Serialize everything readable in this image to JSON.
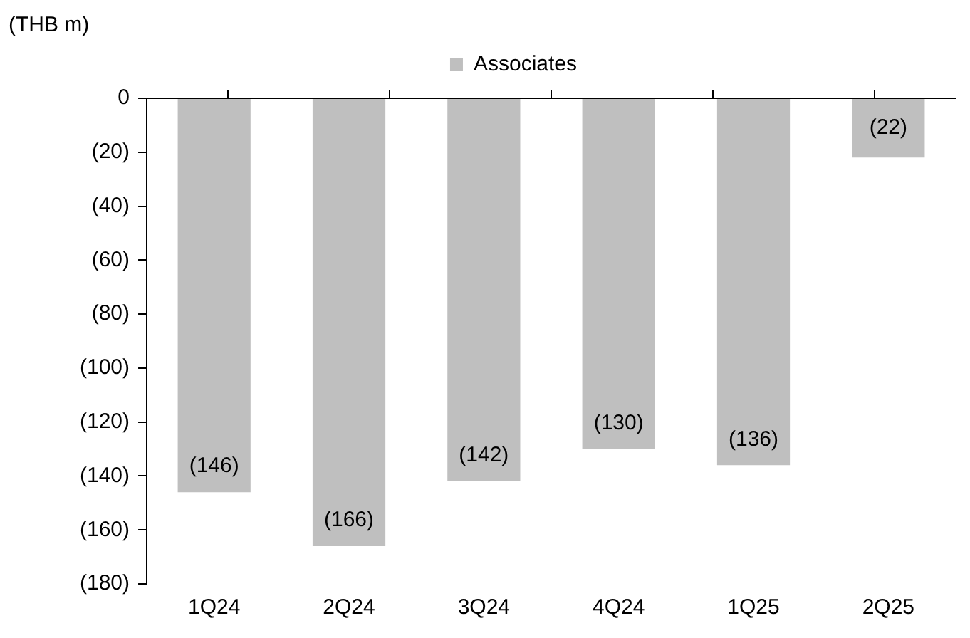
{
  "chart_data": {
    "type": "bar",
    "ylabel": "(THB m)",
    "categories": [
      "1Q24",
      "2Q24",
      "3Q24",
      "4Q24",
      "1Q25",
      "2Q25"
    ],
    "series": [
      {
        "name": "Associates",
        "color": "#bfbfbf",
        "values": [
          -146,
          -166,
          -142,
          -130,
          -136,
          -22
        ],
        "value_labels": [
          "(146)",
          "(166)",
          "(142)",
          "(130)",
          "(136)",
          "(22)"
        ]
      }
    ],
    "ylim": [
      -180,
      0
    ],
    "yticks": [
      {
        "value": -180,
        "label": "(180)"
      },
      {
        "value": -160,
        "label": "(160)"
      },
      {
        "value": -140,
        "label": "(140)"
      },
      {
        "value": -120,
        "label": "(120)"
      },
      {
        "value": -100,
        "label": "(100)"
      },
      {
        "value": -80,
        "label": "(80)"
      },
      {
        "value": -60,
        "label": "(60)"
      },
      {
        "value": -40,
        "label": "(40)"
      },
      {
        "value": -20,
        "label": "(20)"
      },
      0
    ],
    "grid": false,
    "legend": "top"
  }
}
